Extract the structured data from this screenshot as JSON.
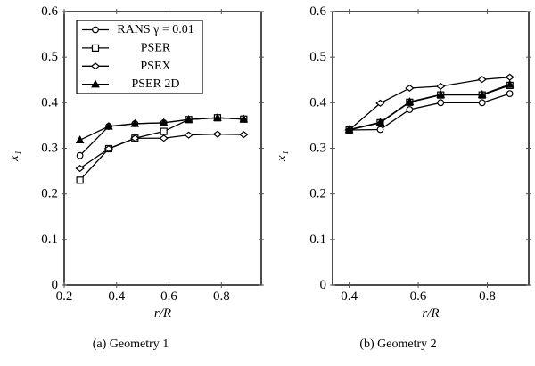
{
  "figure": {
    "background": "#ffffff",
    "ink_color": "#000000"
  },
  "chart_data": [
    {
      "type": "line",
      "caption": "(a) Geometry 1",
      "xlabel": "r/R",
      "ylabel": "x₁",
      "xlim": [
        0.2,
        0.952
      ],
      "ylim": [
        0,
        0.6
      ],
      "xticks": [
        0.2,
        0.4,
        0.6,
        0.8
      ],
      "xtick_labels": [
        "0.2",
        "0.4",
        "0.6",
        "0.8"
      ],
      "yticks": [
        0,
        0.1,
        0.2,
        0.3,
        0.4,
        0.5,
        0.6
      ],
      "ytick_labels": [
        "0",
        "0.1",
        "0.2",
        "0.3",
        "0.4",
        "0.5",
        "0.6"
      ],
      "grid": false,
      "legend": {
        "visible": true,
        "position": "top-left"
      },
      "x": [
        0.26,
        0.37,
        0.47,
        0.58,
        0.675,
        0.785,
        0.885
      ],
      "series": [
        {
          "name": "RANS γ = 0.01",
          "marker": "circle-open",
          "values": [
            0.284,
            0.348,
            0.354,
            0.356,
            0.363,
            0.367,
            0.364
          ]
        },
        {
          "name": "PSER",
          "marker": "square-open",
          "values": [
            0.23,
            0.299,
            0.322,
            0.337,
            0.363,
            0.367,
            0.364
          ]
        },
        {
          "name": "PSEX",
          "marker": "diamond-open",
          "values": [
            0.256,
            0.299,
            0.322,
            0.322,
            0.329,
            0.331,
            0.33
          ]
        },
        {
          "name": "PSER 2D",
          "marker": "triangle-filled",
          "values": [
            0.318,
            0.348,
            0.354,
            0.356,
            0.363,
            0.367,
            0.364
          ]
        }
      ]
    },
    {
      "type": "line",
      "caption": "(b) Geometry 2",
      "xlabel": "r/R",
      "ylabel": "x₁",
      "xlim": [
        0.352,
        0.92
      ],
      "ylim": [
        0,
        0.6
      ],
      "xticks": [
        0.4,
        0.6,
        0.8
      ],
      "xtick_labels": [
        "0.4",
        "0.6",
        "0.8"
      ],
      "yticks": [
        0,
        0.1,
        0.2,
        0.3,
        0.4,
        0.5,
        0.6
      ],
      "ytick_labels": [
        "0",
        "0.1",
        "0.2",
        "0.3",
        "0.4",
        "0.5",
        "0.6"
      ],
      "grid": false,
      "legend": {
        "visible": false
      },
      "x": [
        0.4,
        0.49,
        0.575,
        0.665,
        0.785,
        0.865
      ],
      "series": [
        {
          "name": "RANS γ = 0.01",
          "marker": "circle-open",
          "values": [
            0.34,
            0.341,
            0.385,
            0.4,
            0.4,
            0.42
          ]
        },
        {
          "name": "PSER",
          "marker": "square-open",
          "values": [
            0.34,
            0.356,
            0.401,
            0.417,
            0.417,
            0.438
          ]
        },
        {
          "name": "PSEX",
          "marker": "diamond-open",
          "values": [
            0.34,
            0.399,
            0.432,
            0.436,
            0.451,
            0.456
          ]
        },
        {
          "name": "PSER 2D",
          "marker": "triangle-filled",
          "values": [
            0.341,
            0.357,
            0.402,
            0.418,
            0.418,
            0.44
          ]
        }
      ]
    }
  ]
}
